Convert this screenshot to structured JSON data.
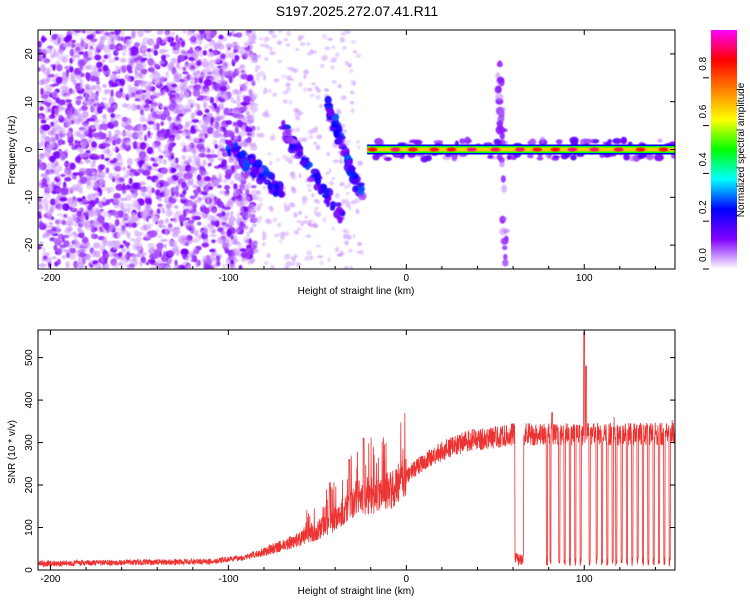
{
  "title": "S197.2025.272.07.41.R11",
  "chart_data": [
    {
      "type": "heatmap",
      "name": "spectrogram",
      "xlabel": "Height of straight line (km)",
      "ylabel": "Frequency (Hz)",
      "xlim": [
        -207,
        151
      ],
      "ylim": [
        -25,
        25
      ],
      "xticks": [
        -200,
        -100,
        0,
        100
      ],
      "yticks": [
        -20,
        -10,
        0,
        10,
        20
      ],
      "colorbar": {
        "label": "Normalized spectral amplitude",
        "range": [
          0,
          1
        ],
        "ticks": [
          "0.0",
          "0.2",
          "0.4",
          "0.6",
          "0.8"
        ],
        "colors": [
          "#ffffff",
          "#8000ff",
          "#0000ff",
          "#00ffff",
          "#00ff00",
          "#ffff00",
          "#ff8000",
          "#ff0000",
          "#ff00ff"
        ]
      },
      "carrier": {
        "x_start": -22,
        "x_end": 151,
        "frequency": 0,
        "amplitude": 0.85
      },
      "noise_region": {
        "x_start": -207,
        "x_end": -85
      },
      "streaks": [
        {
          "x_start": -100,
          "x_end": -70,
          "f_start": 1,
          "f_end": -9
        },
        {
          "x_start": -70,
          "x_end": -35,
          "f_start": 5,
          "f_end": -15
        },
        {
          "x_start": -45,
          "x_end": -25,
          "f_start": 10,
          "f_end": -10
        },
        {
          "x_start": 52,
          "x_end": 56,
          "f_start": 20,
          "f_end": -25
        }
      ]
    },
    {
      "type": "line",
      "name": "snr",
      "xlabel": "Height of straight line (km)",
      "ylabel": "SNR (10 * v/v)",
      "xlim": [
        -207,
        151
      ],
      "ylim": [
        0,
        565
      ],
      "xticks": [
        -200,
        -100,
        0,
        100
      ],
      "yticks": [
        0,
        100,
        200,
        300,
        400,
        500
      ],
      "color": "#ee3333",
      "profile": [
        {
          "x": -207,
          "y": 15
        },
        {
          "x": -110,
          "y": 20
        },
        {
          "x": -90,
          "y": 30
        },
        {
          "x": -75,
          "y": 50
        },
        {
          "x": -55,
          "y": 80
        },
        {
          "x": -40,
          "y": 120
        },
        {
          "x": -28,
          "y": 170
        },
        {
          "x": -15,
          "y": 175
        },
        {
          "x": -5,
          "y": 200
        },
        {
          "x": 5,
          "y": 240
        },
        {
          "x": 20,
          "y": 280
        },
        {
          "x": 35,
          "y": 305
        },
        {
          "x": 55,
          "y": 315
        },
        {
          "x": 60,
          "y": 320
        },
        {
          "x": 151,
          "y": 320
        }
      ],
      "spike_events": [
        {
          "x": -24,
          "y": 310
        },
        {
          "x": -32,
          "y": 260
        },
        {
          "x": -43,
          "y": 205
        },
        {
          "x": 100,
          "y": 560
        },
        {
          "x": 101,
          "y": 480
        },
        {
          "x": 82,
          "y": 370
        }
      ],
      "dropouts": {
        "band": [
          61,
          66
        ],
        "band_level": 25,
        "spikes": [
          79,
          81,
          86,
          89,
          92,
          95,
          98,
          103,
          107,
          110,
          113,
          116,
          118,
          121,
          124,
          127,
          130,
          133,
          136,
          139,
          142,
          145,
          148
        ]
      }
    }
  ]
}
